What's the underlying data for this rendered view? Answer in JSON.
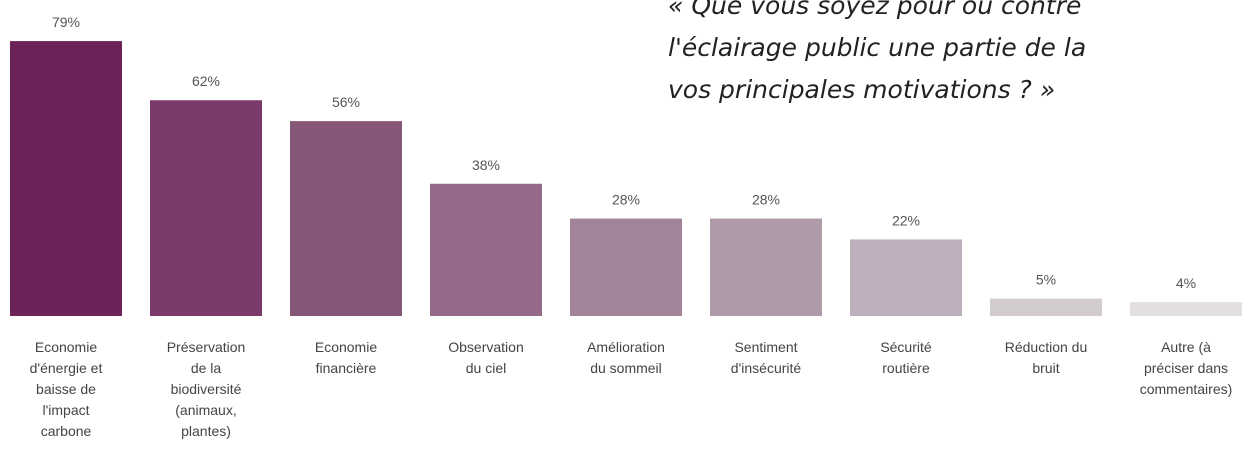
{
  "chart_data": {
    "type": "bar",
    "title": [
      "« Que vous soyez pour ou contre",
      "l'éclairage public une partie de la",
      "vos principales motivations ? »"
    ],
    "categories": [
      [
        "Economie",
        "d'énergie et",
        "baisse de",
        "l'impact",
        "carbone"
      ],
      [
        "Préservation",
        "de la",
        "biodiversité",
        "(animaux,",
        "plantes)"
      ],
      [
        "Economie",
        "financière"
      ],
      [
        "Observation",
        "du ciel"
      ],
      [
        "Amélioration",
        "du sommeil"
      ],
      [
        "Sentiment",
        "d'insécurité"
      ],
      [
        "Sécurité",
        "routière"
      ],
      [
        "Réduction du",
        "bruit"
      ],
      [
        "Autre (à",
        "préciser dans",
        "commentaires)"
      ]
    ],
    "values": [
      79,
      62,
      56,
      38,
      28,
      28,
      22,
      5,
      4
    ],
    "value_labels": [
      "79%",
      "62%",
      "56%",
      "38%",
      "28%",
      "28%",
      "22%",
      "5%",
      "4%"
    ],
    "colors": [
      "#6b2358",
      "#7a3a6a",
      "#865676",
      "#946a88",
      "#a18499",
      "#af9aaa",
      "#bfb0bd",
      "#d2cbd0",
      "#e2dee1"
    ]
  }
}
